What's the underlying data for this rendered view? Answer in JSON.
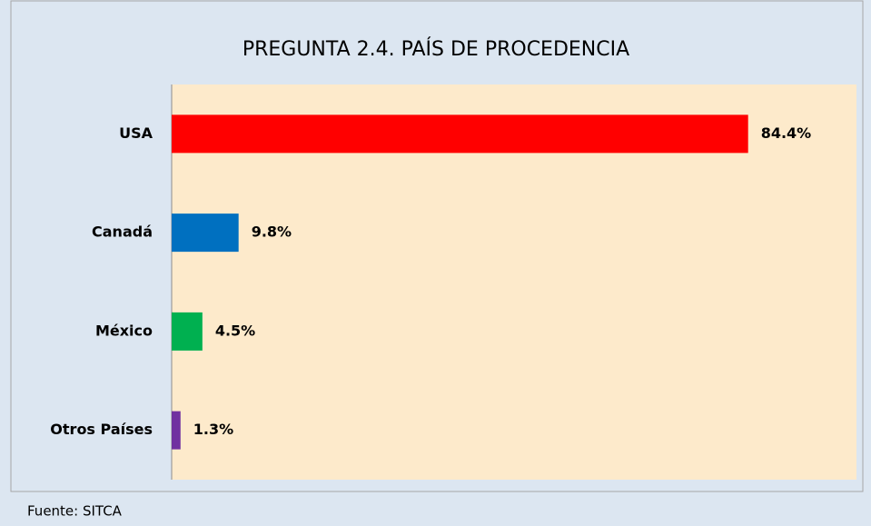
{
  "chart_data": {
    "type": "bar",
    "orientation": "horizontal",
    "title": "PREGUNTA 2.4. PAÍS DE PROCEDENCIA",
    "categories": [
      "USA",
      "Canadá",
      "México",
      "Otros Países"
    ],
    "values": [
      84.4,
      9.8,
      4.5,
      1.3
    ],
    "value_labels": [
      "84.4%",
      "9.8%",
      "4.5%",
      "1.3%"
    ],
    "colors": [
      "#ff0000",
      "#0070c0",
      "#00b050",
      "#7030a0"
    ],
    "source": "Fuente: SITCA"
  }
}
